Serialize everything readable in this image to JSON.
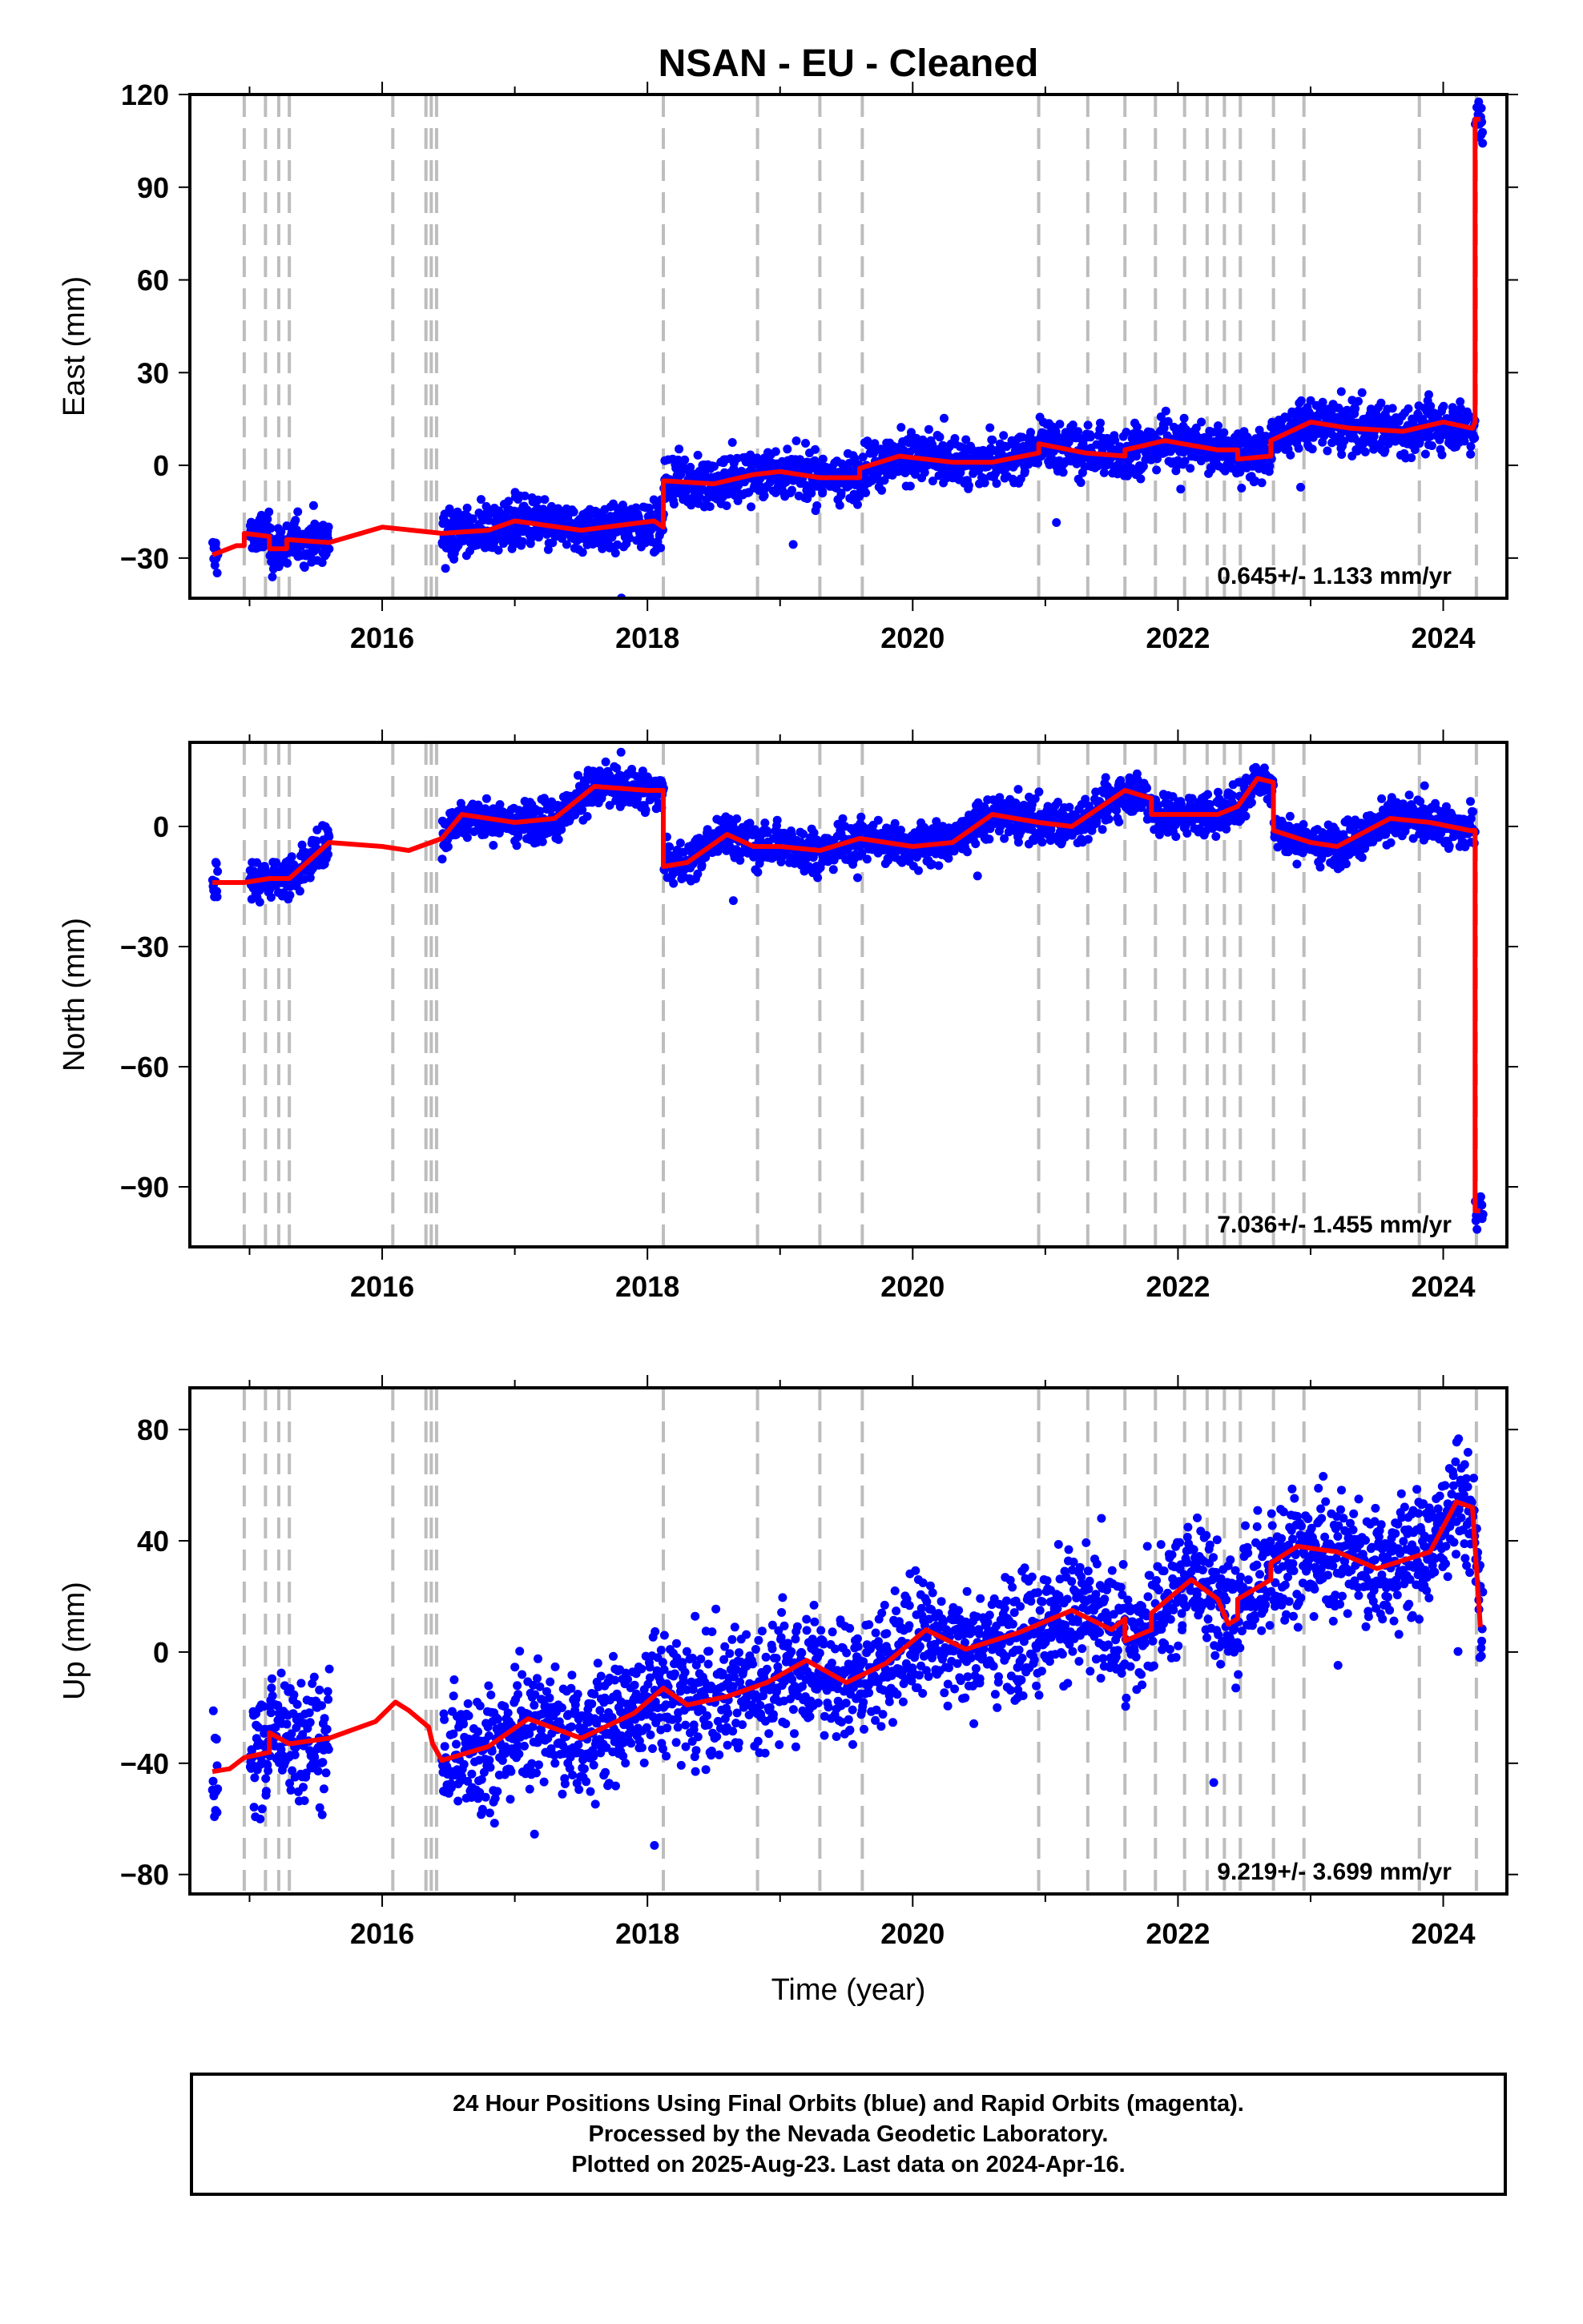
{
  "chart_data": [
    {
      "type": "scatter",
      "title": "NSAN  - EU - Cleaned",
      "xlabel": "",
      "ylabel": "East (mm)",
      "xlim": [
        2014.55,
        2024.48
      ],
      "ylim": [
        -43,
        120
      ],
      "xticks": [
        2016,
        2018,
        2020,
        2022,
        2024
      ],
      "yticks": [
        -30,
        0,
        30,
        60,
        90,
        120
      ],
      "rate_label": "0.645+/- 1.133 mm/yr",
      "series": [
        {
          "role": "positions-final",
          "color": "#0000ff",
          "segments": [
            [
              2014.72,
              2014.76
            ],
            [
              2015.0,
              2015.6
            ],
            [
              2016.45,
              2024.3
            ]
          ],
          "noise": 4.0
        },
        {
          "role": "model-fit",
          "color": "#ff0000",
          "points": [
            [
              2014.72,
              -29
            ],
            [
              2014.9,
              -26
            ],
            [
              2014.96,
              -26
            ],
            [
              2014.96,
              -22
            ],
            [
              2015.15,
              -23
            ],
            [
              2015.15,
              -27
            ],
            [
              2015.28,
              -27
            ],
            [
              2015.28,
              -24
            ],
            [
              2015.6,
              -25
            ],
            [
              2016.0,
              -20
            ],
            [
              2016.45,
              -22
            ],
            [
              2016.8,
              -21
            ],
            [
              2017.0,
              -18
            ],
            [
              2017.5,
              -21
            ],
            [
              2018.05,
              -18
            ],
            [
              2018.12,
              -20
            ],
            [
              2018.12,
              -5
            ],
            [
              2018.5,
              -6
            ],
            [
              2018.8,
              -3
            ],
            [
              2019.0,
              -2
            ],
            [
              2019.3,
              -4
            ],
            [
              2019.6,
              -4
            ],
            [
              2019.6,
              -1
            ],
            [
              2019.9,
              3
            ],
            [
              2020.3,
              1
            ],
            [
              2020.6,
              1
            ],
            [
              2020.95,
              4
            ],
            [
              2020.95,
              7
            ],
            [
              2021.3,
              4
            ],
            [
              2021.6,
              3
            ],
            [
              2021.6,
              5
            ],
            [
              2021.9,
              8
            ],
            [
              2022.3,
              5
            ],
            [
              2022.45,
              5
            ],
            [
              2022.45,
              2
            ],
            [
              2022.7,
              3
            ],
            [
              2022.7,
              8
            ],
            [
              2023.0,
              14
            ],
            [
              2023.3,
              12
            ],
            [
              2023.7,
              11
            ],
            [
              2024.0,
              14
            ],
            [
              2024.22,
              12
            ],
            [
              2024.24,
              14
            ],
            [
              2024.24,
              112
            ],
            [
              2024.28,
              112
            ]
          ]
        }
      ]
    },
    {
      "type": "scatter",
      "xlabel": "",
      "ylabel": "North (mm)",
      "xlim": [
        2014.55,
        2024.48
      ],
      "ylim": [
        -105,
        21
      ],
      "xticks": [
        2016,
        2018,
        2020,
        2022,
        2024
      ],
      "yticks": [
        -90,
        -60,
        -30,
        0
      ],
      "rate_label": "7.036+/- 1.455 mm/yr",
      "series": [
        {
          "role": "positions-final",
          "color": "#0000ff",
          "segments": [
            [
              2014.72,
              2014.76
            ],
            [
              2015.0,
              2015.6
            ],
            [
              2016.45,
              2024.3
            ]
          ],
          "noise": 2.6
        },
        {
          "role": "model-fit",
          "color": "#ff0000",
          "points": [
            [
              2014.72,
              -14
            ],
            [
              2014.96,
              -14
            ],
            [
              2015.15,
              -13
            ],
            [
              2015.3,
              -13
            ],
            [
              2015.6,
              -4
            ],
            [
              2016.0,
              -5
            ],
            [
              2016.2,
              -6
            ],
            [
              2016.45,
              -3
            ],
            [
              2016.6,
              3
            ],
            [
              2017.0,
              1
            ],
            [
              2017.3,
              2
            ],
            [
              2017.6,
              10
            ],
            [
              2018.0,
              9
            ],
            [
              2018.12,
              9
            ],
            [
              2018.12,
              -10
            ],
            [
              2018.3,
              -9
            ],
            [
              2018.6,
              -2
            ],
            [
              2018.8,
              -5
            ],
            [
              2019.0,
              -5
            ],
            [
              2019.3,
              -6
            ],
            [
              2019.6,
              -3
            ],
            [
              2019.6,
              -3
            ],
            [
              2020.0,
              -5
            ],
            [
              2020.3,
              -4
            ],
            [
              2020.6,
              3
            ],
            [
              2020.95,
              1
            ],
            [
              2021.2,
              0
            ],
            [
              2021.6,
              9
            ],
            [
              2021.8,
              7
            ],
            [
              2021.8,
              3
            ],
            [
              2022.3,
              3
            ],
            [
              2022.45,
              5
            ],
            [
              2022.6,
              12
            ],
            [
              2022.72,
              11
            ],
            [
              2022.72,
              -1
            ],
            [
              2023.0,
              -4
            ],
            [
              2023.2,
              -5
            ],
            [
              2023.6,
              2
            ],
            [
              2023.9,
              1
            ],
            [
              2024.2,
              -1
            ],
            [
              2024.24,
              -1
            ],
            [
              2024.24,
              -96
            ],
            [
              2024.28,
              -96
            ]
          ]
        }
      ]
    },
    {
      "type": "scatter",
      "xlabel": "Time (year)",
      "ylabel": "Up (mm)",
      "xlim": [
        2014.55,
        2024.48
      ],
      "ylim": [
        -87,
        95
      ],
      "xticks": [
        2016,
        2018,
        2020,
        2022,
        2024
      ],
      "yticks": [
        -80,
        -40,
        0,
        40,
        80
      ],
      "rate_label": "9.219+/- 3.699 mm/yr",
      "series": [
        {
          "role": "positions-final",
          "color": "#0000ff",
          "segments": [
            [
              2014.72,
              2014.76
            ],
            [
              2015.0,
              2015.6
            ],
            [
              2016.45,
              2024.3
            ]
          ],
          "noise": 11.0
        },
        {
          "role": "model-fit",
          "color": "#ff0000",
          "points": [
            [
              2014.72,
              -43
            ],
            [
              2014.85,
              -42
            ],
            [
              2014.96,
              -38
            ],
            [
              2015.15,
              -36
            ],
            [
              2015.15,
              -29
            ],
            [
              2015.3,
              -33
            ],
            [
              2015.6,
              -31
            ],
            [
              2015.95,
              -25
            ],
            [
              2016.1,
              -18
            ],
            [
              2016.2,
              -21
            ],
            [
              2016.35,
              -27
            ],
            [
              2016.38,
              -33
            ],
            [
              2016.45,
              -39
            ],
            [
              2016.8,
              -34
            ],
            [
              2017.1,
              -24
            ],
            [
              2017.5,
              -31
            ],
            [
              2017.9,
              -22
            ],
            [
              2018.12,
              -13
            ],
            [
              2018.3,
              -19
            ],
            [
              2018.6,
              -16
            ],
            [
              2018.9,
              -11
            ],
            [
              2019.2,
              -3
            ],
            [
              2019.5,
              -11
            ],
            [
              2019.8,
              -4
            ],
            [
              2020.1,
              8
            ],
            [
              2020.4,
              1
            ],
            [
              2020.8,
              7
            ],
            [
              2021.2,
              15
            ],
            [
              2021.5,
              8
            ],
            [
              2021.6,
              12
            ],
            [
              2021.6,
              4
            ],
            [
              2021.8,
              8
            ],
            [
              2021.8,
              14
            ],
            [
              2022.1,
              26
            ],
            [
              2022.3,
              19
            ],
            [
              2022.38,
              10
            ],
            [
              2022.45,
              12
            ],
            [
              2022.45,
              19
            ],
            [
              2022.7,
              26
            ],
            [
              2022.7,
              32
            ],
            [
              2022.9,
              38
            ],
            [
              2023.2,
              36
            ],
            [
              2023.5,
              30
            ],
            [
              2023.9,
              36
            ],
            [
              2024.1,
              54
            ],
            [
              2024.22,
              52
            ],
            [
              2024.28,
              9
            ]
          ]
        }
      ]
    }
  ],
  "event_lines": [
    2014.96,
    2015.12,
    2015.22,
    2015.3,
    2016.08,
    2016.33,
    2016.37,
    2016.41,
    2018.12,
    2018.83,
    2019.3,
    2019.62,
    2020.95,
    2021.32,
    2021.6,
    2021.83,
    2022.05,
    2022.22,
    2022.35,
    2022.47,
    2022.72,
    2022.95,
    2023.82,
    2024.25
  ],
  "footer": {
    "line1": "24 Hour Positions Using Final Orbits (blue) and Rapid Orbits (magenta).",
    "line2": "Processed by the Nevada Geodetic Laboratory.",
    "line3": "Plotted on 2025-Aug-23. Last data on 2024-Apr-16."
  }
}
